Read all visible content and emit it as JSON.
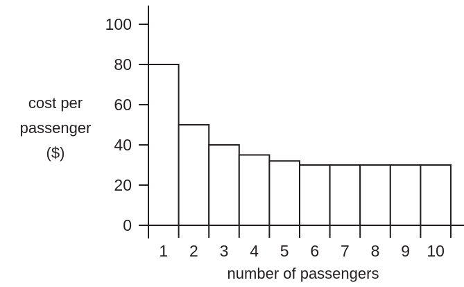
{
  "chart_data": {
    "type": "bar",
    "categories": [
      "1",
      "2",
      "3",
      "4",
      "5",
      "6",
      "7",
      "8",
      "9",
      "10"
    ],
    "values": [
      80,
      50,
      40,
      35,
      32,
      30,
      30,
      30,
      30,
      30
    ],
    "title": "",
    "xlabel": "number of passengers",
    "ylabel": [
      "cost per",
      "passenger",
      "($)"
    ],
    "ylim": [
      0,
      100
    ],
    "yticks": [
      0,
      20,
      40,
      60,
      80,
      100
    ],
    "grid": false,
    "bar_fill": "#ffffff",
    "stroke_color": "#231f20"
  }
}
